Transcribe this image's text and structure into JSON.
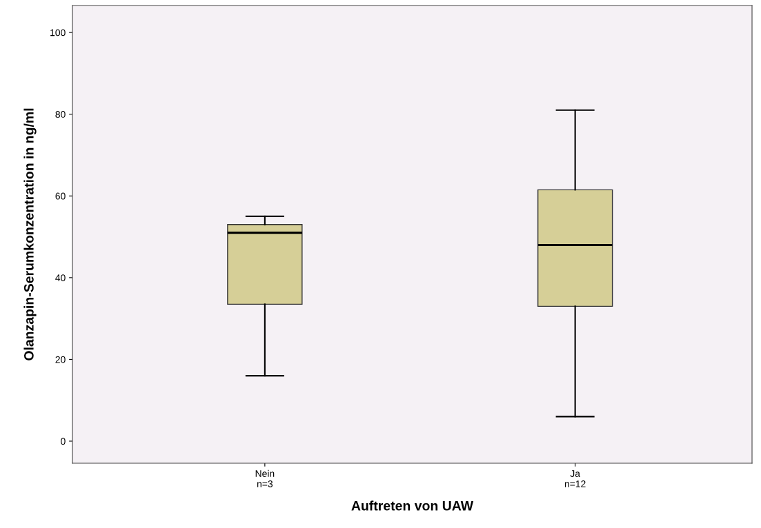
{
  "chart_data": {
    "type": "box",
    "xlabel": "Auftreten von UAW",
    "ylabel": "Olanzapin-Serumkonzentration in ng/ml",
    "categories": [
      "Nein\nn=3",
      "Ja\nn=12"
    ],
    "boxes": [
      {
        "low": 16,
        "q1": 33.5,
        "median": 51,
        "q3": 53,
        "high": 55
      },
      {
        "low": 6,
        "q1": 33,
        "median": 48,
        "q3": 61.5,
        "high": 81
      }
    ],
    "color": "#d6cf97",
    "ylim": [
      -5.4,
      106.6
    ],
    "yticks": [
      0,
      20,
      40,
      60,
      80,
      100
    ],
    "grid": false,
    "legend": false
  }
}
